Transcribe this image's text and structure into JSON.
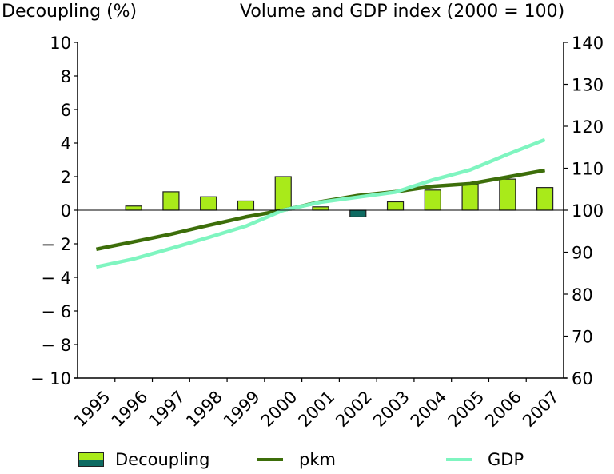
{
  "chart_data": {
    "type": "bar",
    "title_left": "Decoupling (%)",
    "title_right": "Volume and GDP index  (2000 = 100)",
    "categories": [
      "1995",
      "1996",
      "1997",
      "1998",
      "1999",
      "2000",
      "2001",
      "2002",
      "2003",
      "2004",
      "2005",
      "2006",
      "2007"
    ],
    "left_axis": {
      "label": "Decoupling (%)",
      "ylim": [
        -10,
        10
      ],
      "ticks": [
        10,
        8,
        6,
        4,
        2,
        0,
        -2,
        -4,
        -6,
        -8,
        -10
      ],
      "tick_labels": [
        "10",
        "8",
        "6",
        "4",
        "2",
        "0",
        "− 2",
        "− 4",
        "− 6",
        "− 8",
        "− 10"
      ]
    },
    "right_axis": {
      "label": "Volume and GDP index (2000 = 100)",
      "ylim": [
        60,
        140
      ],
      "ticks": [
        140,
        130,
        120,
        110,
        100,
        90,
        80,
        70,
        60
      ],
      "tick_labels": [
        "140",
        "130",
        "120",
        "110",
        "100",
        "90",
        "80",
        "70",
        "60"
      ]
    },
    "series": [
      {
        "name": "Decoupling",
        "type": "bar",
        "axis": "left",
        "color_positive": "#a9ea1a",
        "color_negative": "#0e6b62",
        "values": [
          null,
          0.25,
          1.1,
          0.8,
          0.55,
          2.0,
          0.2,
          -0.4,
          0.5,
          1.2,
          1.55,
          1.85,
          1.35
        ]
      },
      {
        "name": "pkm",
        "type": "line",
        "axis": "right",
        "color": "#3d6e0a",
        "values": [
          90.7,
          92.5,
          94.3,
          96.4,
          98.4,
          100.0,
          102.0,
          103.5,
          104.4,
          105.7,
          106.3,
          107.9,
          109.5
        ]
      },
      {
        "name": "GDP",
        "type": "line",
        "axis": "right",
        "color": "#7ff5c0",
        "values": [
          86.5,
          88.4,
          90.9,
          93.5,
          96.2,
          100.0,
          101.9,
          103.1,
          104.3,
          107.2,
          109.6,
          113.3,
          116.8
        ]
      }
    ],
    "legend": {
      "placement": "bottom",
      "items": [
        "Decoupling",
        "pkm",
        "GDP"
      ]
    },
    "grid": false
  }
}
